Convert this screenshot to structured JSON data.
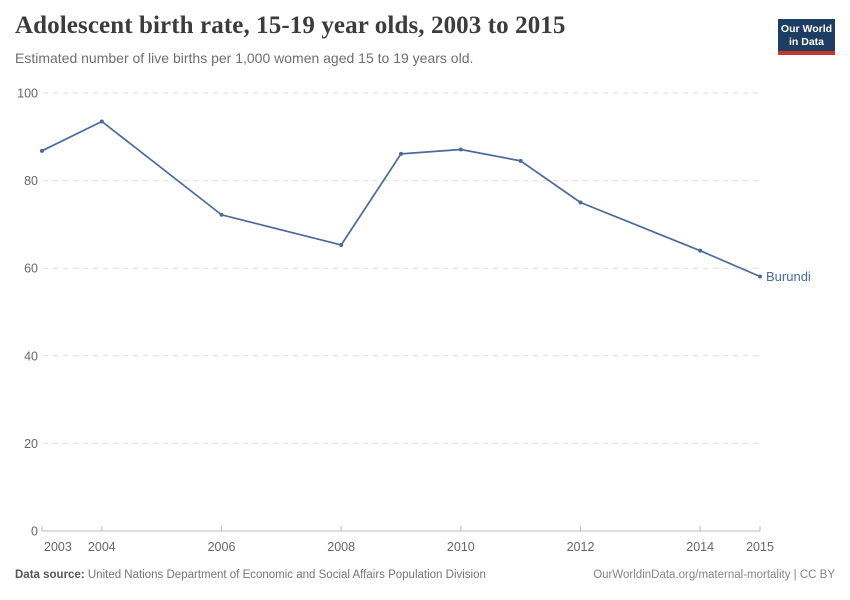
{
  "header": {
    "logo": {
      "line1": "Our World",
      "line2": "in Data",
      "bg_color": "#1d3d63",
      "bar_color": "#c0392b"
    }
  },
  "chart_data": {
    "type": "line",
    "title": "Adolescent birth rate, 15-19 year olds, 2003 to 2015",
    "subtitle": "Estimated number of live births per 1,000 women aged 15 to 19 years old.",
    "series": [
      {
        "name": "Burundi",
        "color": "#4c6a9c",
        "x": [
          2003,
          2004,
          2006,
          2008,
          2009,
          2010,
          2011,
          2012,
          2014,
          2015
        ],
        "values": [
          86.8,
          93.5,
          72.2,
          65.3,
          86.1,
          87.1,
          84.5,
          75.0,
          64.0,
          58.1
        ]
      }
    ],
    "xlim": [
      2003,
      2015
    ],
    "ylim": [
      0,
      100
    ],
    "x_ticks": [
      2003,
      2004,
      2006,
      2008,
      2010,
      2012,
      2014,
      2015
    ],
    "y_ticks": [
      0,
      20,
      40,
      60,
      80,
      100
    ],
    "grid": "horizontal-dashed",
    "legend_position": "end-of-line-label",
    "colors": {
      "gridline": "#dddddd",
      "axis_line": "#bbbbbb",
      "tick_label": "#666666"
    }
  },
  "footer": {
    "source_label": "Data source:",
    "source_text": "United Nations Department of Economic and Social Affairs Population Division",
    "link_text": "OurWorldinData.org/maternal-mortality | CC BY"
  }
}
